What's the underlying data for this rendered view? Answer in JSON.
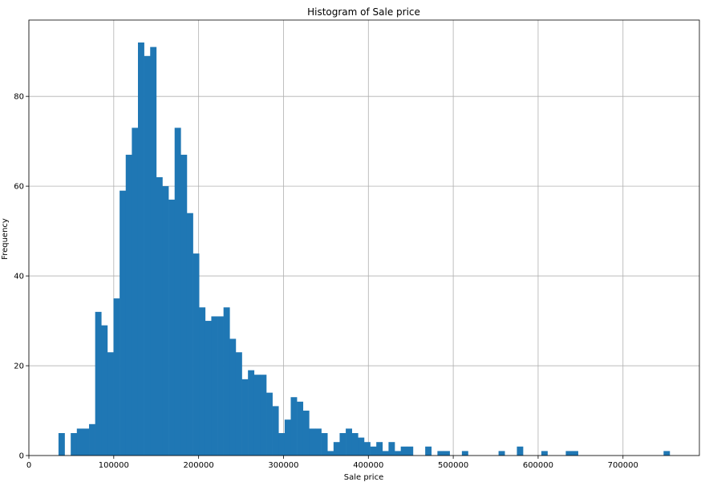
{
  "chart_data": {
    "type": "bar",
    "title": "Histogram of Sale price",
    "xlabel": "Sale price",
    "ylabel": "Frequency",
    "xlim": [
      0,
      790000
    ],
    "ylim": [
      0,
      97
    ],
    "grid": true,
    "bar_color": "#1f77b4",
    "bin_width": 7201,
    "bin_start": 34900,
    "xticks": [
      0,
      100000,
      200000,
      300000,
      400000,
      500000,
      600000,
      700000
    ],
    "xtick_labels": [
      "0",
      "100000",
      "200000",
      "300000",
      "400000",
      "500000",
      "600000",
      "700000"
    ],
    "yticks": [
      0,
      20,
      40,
      60,
      80
    ],
    "ytick_labels": [
      "0",
      "20",
      "40",
      "60",
      "80"
    ],
    "values": [
      5,
      0,
      5,
      6,
      6,
      7,
      32,
      29,
      23,
      35,
      59,
      67,
      73,
      92,
      89,
      91,
      62,
      60,
      57,
      73,
      67,
      54,
      45,
      33,
      30,
      31,
      31,
      33,
      26,
      23,
      17,
      19,
      18,
      18,
      14,
      11,
      5,
      8,
      13,
      12,
      10,
      6,
      6,
      5,
      1,
      3,
      5,
      6,
      5,
      4,
      3,
      2,
      3,
      1,
      3,
      1,
      2,
      2,
      0,
      0,
      2,
      0,
      1,
      1,
      0,
      0,
      1,
      0,
      0,
      0,
      0,
      0,
      1,
      0,
      0,
      2,
      0,
      0,
      0,
      1,
      0,
      0,
      0,
      1,
      1,
      0,
      0,
      0,
      0,
      0,
      0,
      0,
      0,
      0,
      0,
      0,
      0,
      0,
      0,
      1
    ]
  }
}
